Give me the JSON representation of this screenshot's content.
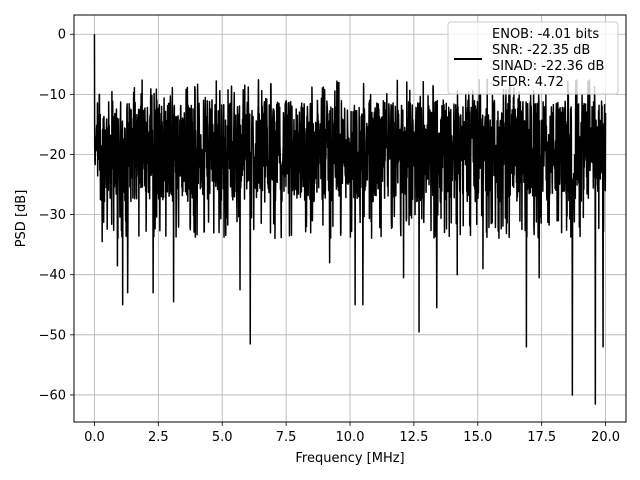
{
  "chart_data": {
    "type": "line",
    "title": "",
    "xlabel": "Frequency [MHz]",
    "ylabel": "PSD [dB]",
    "xlim": [
      -0.8,
      20.8
    ],
    "ylim": [
      -64.5,
      3.2
    ],
    "x_ticks": [
      0.0,
      2.5,
      5.0,
      7.5,
      10.0,
      12.5,
      15.0,
      17.5,
      20.0
    ],
    "x_tick_labels": [
      "0.0",
      "2.5",
      "5.0",
      "7.5",
      "10.0",
      "12.5",
      "15.0",
      "17.5",
      "20.0"
    ],
    "y_ticks": [
      0,
      -10,
      -20,
      -30,
      -40,
      -50,
      -60
    ],
    "y_tick_labels": [
      "0",
      "−10",
      "−20",
      "−30",
      "−40",
      "−50",
      "−60"
    ],
    "grid": true,
    "legend_position": "top-right",
    "legend_lines": [
      "ENOB: -4.01 bits",
      "SNR: -22.35 dB",
      "SINAD: -22.36 dB",
      "SFDR: 4.72"
    ],
    "series": [
      {
        "color": "#000000",
        "x_range": [
          0.0,
          20.0
        ],
        "num_points": 2048,
        "noise_floor_band_db": [
          -28,
          -11
        ],
        "peaks": [
          {
            "x": 0.0,
            "y": 0.0
          }
        ],
        "dips": [
          {
            "x": 0.3,
            "y": -34.5
          },
          {
            "x": 0.9,
            "y": -38.5
          },
          {
            "x": 1.1,
            "y": -45.0
          },
          {
            "x": 1.3,
            "y": -43.0
          },
          {
            "x": 2.3,
            "y": -43.0
          },
          {
            "x": 3.1,
            "y": -44.5
          },
          {
            "x": 5.7,
            "y": -42.5
          },
          {
            "x": 6.1,
            "y": -51.5
          },
          {
            "x": 9.2,
            "y": -38.0
          },
          {
            "x": 10.2,
            "y": -45.0
          },
          {
            "x": 10.5,
            "y": -45.0
          },
          {
            "x": 12.1,
            "y": -40.5
          },
          {
            "x": 12.7,
            "y": -49.5
          },
          {
            "x": 13.4,
            "y": -45.5
          },
          {
            "x": 14.2,
            "y": -40.0
          },
          {
            "x": 15.2,
            "y": -39.0
          },
          {
            "x": 16.9,
            "y": -52.0
          },
          {
            "x": 17.4,
            "y": -40.5
          },
          {
            "x": 18.7,
            "y": -60.0
          },
          {
            "x": 19.6,
            "y": -61.5
          },
          {
            "x": 19.9,
            "y": -52.0
          }
        ]
      }
    ]
  }
}
